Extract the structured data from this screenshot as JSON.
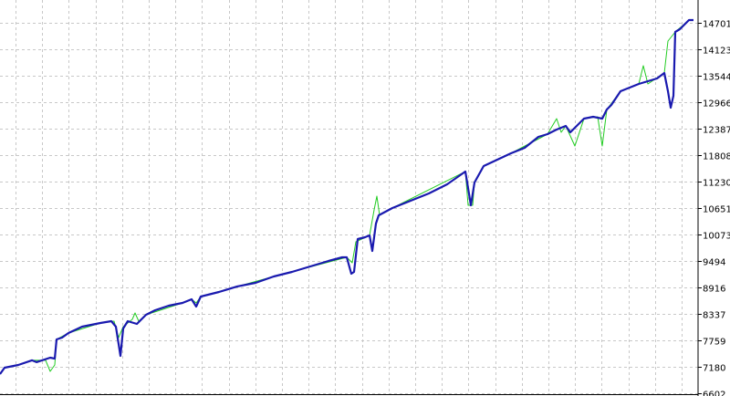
{
  "chart_data": {
    "type": "line",
    "title": "",
    "xlabel": "",
    "ylabel": "",
    "ylim": [
      6602,
      14990
    ],
    "xlim": [
      0,
      380
    ],
    "grid": true,
    "y_ticks": [
      "14701",
      "14123",
      "13544",
      "12966",
      "12387",
      "11808",
      "11230",
      "10651",
      "10073",
      "9494",
      "8916",
      "8337",
      "7759",
      "7180",
      "6602"
    ],
    "colors": {
      "equity": "#1a1aaf",
      "balance": "#22cc22",
      "grid": "#c8c8c8",
      "axis": "#000000"
    },
    "series": [
      {
        "key": "equity",
        "x": [
          0,
          2.5,
          10,
          17.5,
          20,
          27.5,
          30,
          31,
          34,
          37.5,
          45,
          55,
          61,
          63.5,
          66,
          67.5,
          70,
          75,
          80,
          85,
          92.5,
          100,
          105,
          107.5,
          110,
          120,
          130,
          140,
          150,
          160,
          170,
          180,
          187.5,
          190,
          192.5,
          194,
          196,
          200,
          202.5,
          204,
          206,
          207.5,
          215,
          225,
          235,
          245,
          255,
          256,
          258,
          260,
          265,
          272.5,
          280,
          287.5,
          295,
          300,
          305,
          310,
          312.5,
          320,
          325,
          330,
          332.5,
          335,
          340,
          350,
          360,
          364,
          366,
          367.5,
          369,
          370,
          372.5,
          377.5,
          380
        ],
        "values": [
          7020,
          7160,
          7220,
          7320,
          7280,
          7379,
          7359,
          7778,
          7818,
          7918,
          8058,
          8137,
          8177,
          8058,
          7419,
          8018,
          8177,
          8117,
          8317,
          8417,
          8516,
          8576,
          8656,
          8496,
          8716,
          8816,
          8936,
          9015,
          9155,
          9255,
          9374,
          9494,
          9574,
          9574,
          9215,
          9255,
          9973,
          10013,
          10053,
          9714,
          10312,
          10492,
          10651,
          10811,
          10970,
          11170,
          11449,
          11210,
          10711,
          11210,
          11569,
          11708,
          11848,
          11968,
          12207,
          12267,
          12367,
          12447,
          12307,
          12606,
          12646,
          12606,
          12806,
          12905,
          13204,
          13364,
          13484,
          13604,
          13204,
          12846,
          13105,
          14501,
          14561,
          14761,
          14761
        ]
      },
      {
        "key": "balance",
        "x": [
          0,
          2.5,
          10,
          17.5,
          25,
          27.5,
          30,
          31,
          37.5,
          55,
          62.5,
          65,
          67.5,
          72.5,
          74,
          76,
          80,
          100,
          105,
          107.5,
          110,
          150,
          190,
          193,
          195,
          202.5,
          205,
          206.5,
          208,
          215,
          255,
          256.5,
          259,
          260,
          265,
          280,
          300,
          305,
          307.5,
          310,
          315,
          320,
          327.5,
          330,
          332.5,
          340,
          350,
          352.5,
          355,
          364,
          366,
          370,
          377.5,
          380
        ],
        "values": [
          7020,
          7160,
          7220,
          7320,
          7320,
          7080,
          7220,
          7778,
          7918,
          8137,
          8177,
          7818,
          8058,
          8217,
          8357,
          8177,
          8317,
          8576,
          8656,
          8576,
          8716,
          9155,
          9574,
          9454,
          9913,
          10053,
          10611,
          10910,
          10492,
          10651,
          11449,
          10711,
          10711,
          11210,
          11569,
          11848,
          12267,
          12606,
          12307,
          12447,
          12008,
          12606,
          12646,
          12008,
          12806,
          13204,
          13364,
          13763,
          13364,
          13604,
          14302,
          14501,
          14761,
          14761
        ]
      }
    ]
  }
}
